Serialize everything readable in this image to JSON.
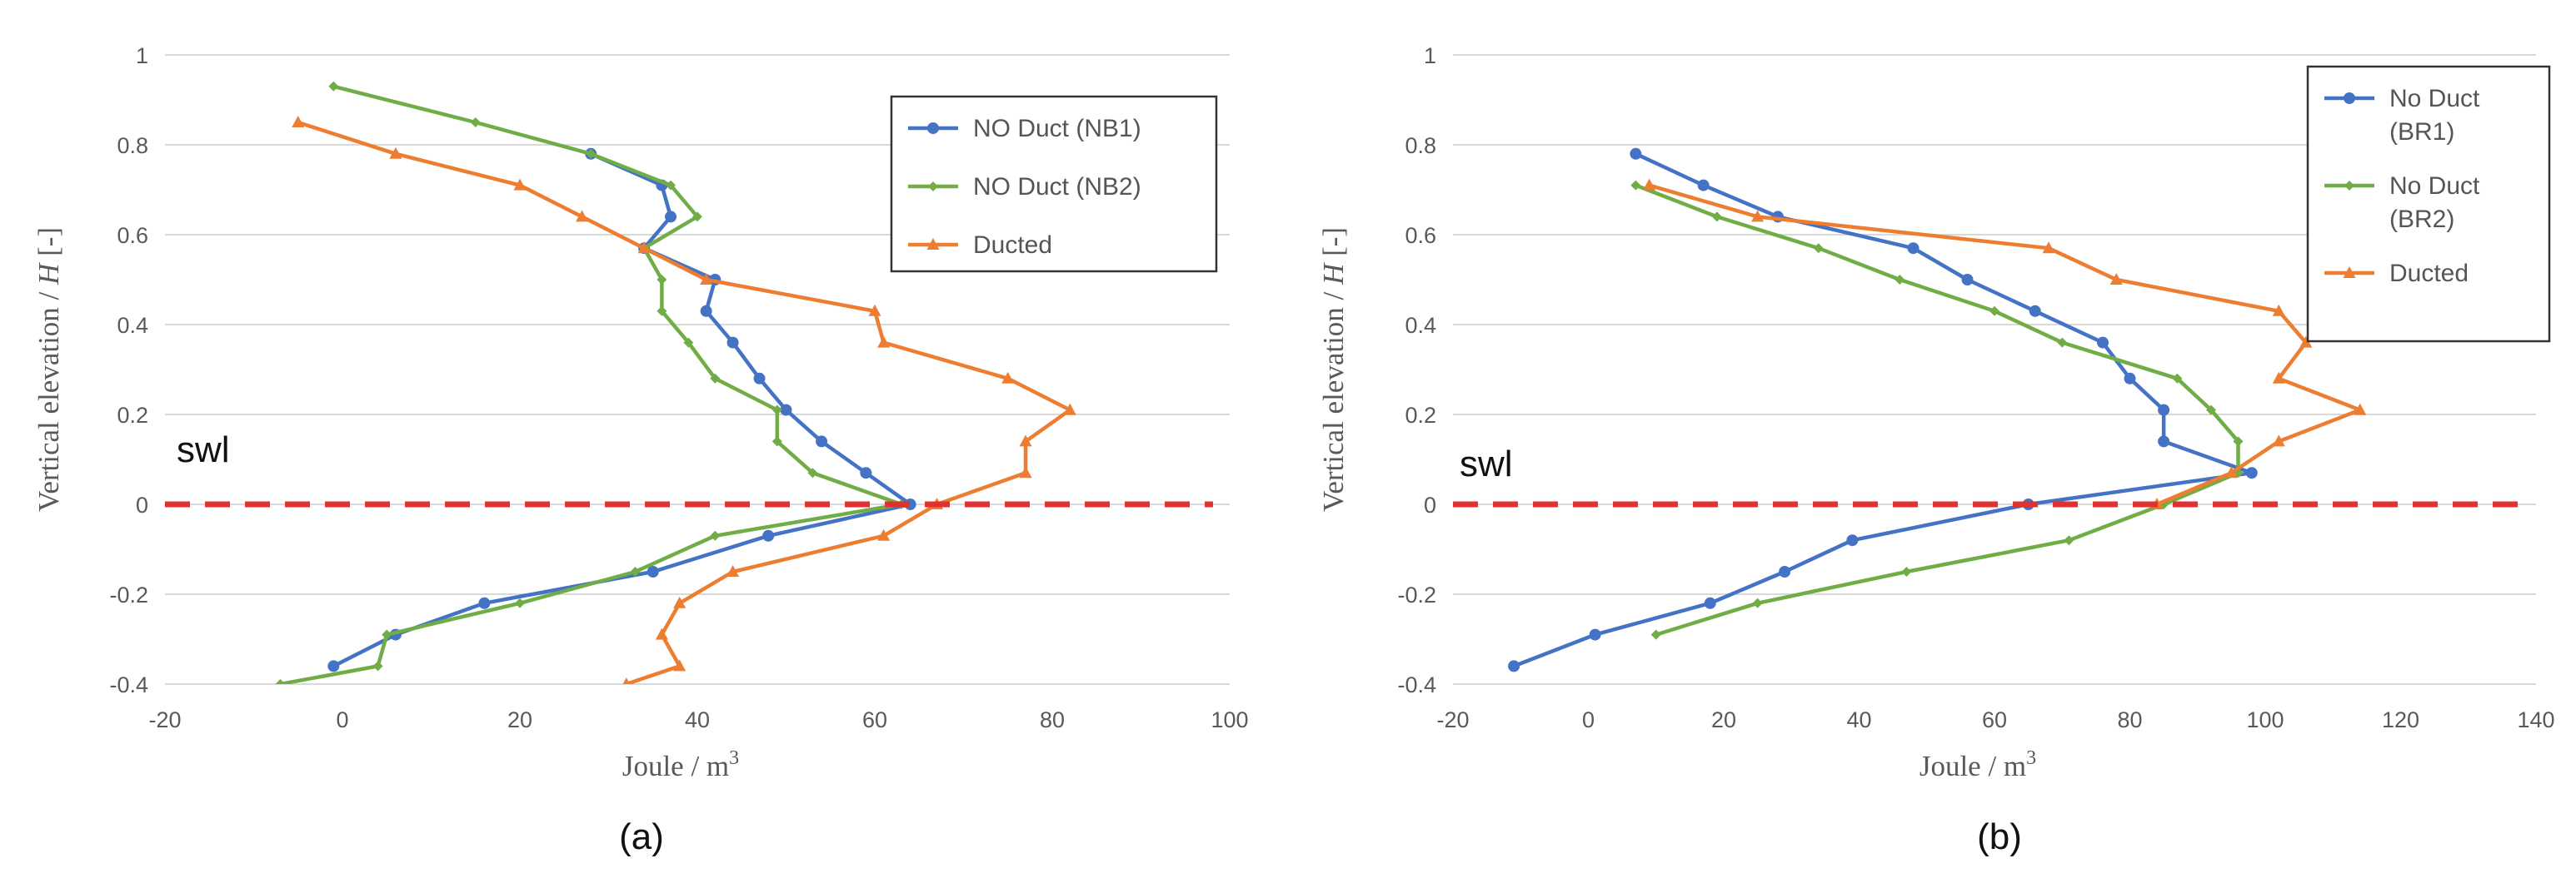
{
  "colors": {
    "blue": "#4472c4",
    "green": "#70ad47",
    "orange": "#ed7d31",
    "swl": "#e03030",
    "grid": "#d9d9d9",
    "legend_border": "#333333",
    "text": "#595959"
  },
  "chart_data": [
    {
      "type": "line",
      "caption": "(a)",
      "xlabel": "Joule / m",
      "xlabel_sup": "3",
      "ylabel_prefix": "Vertical elevation / ",
      "ylabel_var": "H",
      "ylabel_suffix": " [-]",
      "xlim": [
        -20,
        100
      ],
      "ylim": [
        -0.4,
        1
      ],
      "xticks": [
        -20,
        0,
        20,
        40,
        60,
        80,
        100
      ],
      "yticks": [
        -0.4,
        -0.2,
        0,
        0.2,
        0.4,
        0.6,
        0.8,
        1
      ],
      "xtick_labels": [
        "-20",
        "0",
        "20",
        "40",
        "60",
        "80",
        "100"
      ],
      "ytick_labels": [
        "-0.4",
        "-0.2",
        "0",
        "0.2",
        "0.4",
        "0.6",
        "0.8",
        "1"
      ],
      "grid": "horizontal",
      "legend_position": "top-right",
      "annotation": "swl",
      "swl_y": 0,
      "series": [
        {
          "name": "NO Duct (NB1)",
          "color_key": "blue",
          "marker": "circle",
          "points": [
            [
              -1,
              -0.36
            ],
            [
              6,
              -0.29
            ],
            [
              16,
              -0.22
            ],
            [
              35,
              -0.15
            ],
            [
              48,
              -0.07
            ],
            [
              64,
              0.0
            ],
            [
              59,
              0.07
            ],
            [
              54,
              0.14
            ],
            [
              50,
              0.21
            ],
            [
              47,
              0.28
            ],
            [
              44,
              0.36
            ],
            [
              41,
              0.43
            ],
            [
              42,
              0.5
            ],
            [
              34,
              0.57
            ],
            [
              37,
              0.64
            ],
            [
              36,
              0.71
            ],
            [
              28,
              0.78
            ]
          ]
        },
        {
          "name": "NO Duct (NB2)",
          "color_key": "green",
          "marker": "diamond",
          "points": [
            [
              -7,
              -0.4
            ],
            [
              4,
              -0.36
            ],
            [
              5,
              -0.29
            ],
            [
              20,
              -0.22
            ],
            [
              33,
              -0.15
            ],
            [
              42,
              -0.07
            ],
            [
              63,
              0.0
            ],
            [
              53,
              0.07
            ],
            [
              49,
              0.14
            ],
            [
              49,
              0.21
            ],
            [
              42,
              0.28
            ],
            [
              39,
              0.36
            ],
            [
              36,
              0.43
            ],
            [
              36,
              0.5
            ],
            [
              34,
              0.57
            ],
            [
              40,
              0.64
            ],
            [
              37,
              0.71
            ],
            [
              28,
              0.78
            ],
            [
              15,
              0.85
            ],
            [
              -1,
              0.93
            ]
          ]
        },
        {
          "name": "Ducted",
          "color_key": "orange",
          "marker": "triangle",
          "points": [
            [
              32,
              -0.4
            ],
            [
              38,
              -0.36
            ],
            [
              36,
              -0.29
            ],
            [
              38,
              -0.22
            ],
            [
              44,
              -0.15
            ],
            [
              61,
              -0.07
            ],
            [
              67,
              0.0
            ],
            [
              77,
              0.07
            ],
            [
              77,
              0.14
            ],
            [
              82,
              0.21
            ],
            [
              75,
              0.28
            ],
            [
              61,
              0.36
            ],
            [
              60,
              0.43
            ],
            [
              41,
              0.5
            ],
            [
              34,
              0.57
            ],
            [
              27,
              0.64
            ],
            [
              20,
              0.71
            ],
            [
              6,
              0.78
            ],
            [
              -5,
              0.85
            ]
          ]
        }
      ]
    },
    {
      "type": "line",
      "caption": "(b)",
      "xlabel": "Joule / m",
      "xlabel_sup": "3",
      "ylabel_prefix": "Vertical elevation / ",
      "ylabel_var": "H",
      "ylabel_suffix": " [-]",
      "xlim": [
        -20,
        140
      ],
      "ylim": [
        -0.4,
        1
      ],
      "xticks": [
        -20,
        0,
        20,
        40,
        60,
        80,
        100,
        120,
        140
      ],
      "yticks": [
        -0.4,
        -0.2,
        0,
        0.2,
        0.4,
        0.6,
        0.8,
        1
      ],
      "xtick_labels": [
        "-20",
        "0",
        "20",
        "40",
        "60",
        "80",
        "100",
        "120",
        "140"
      ],
      "ytick_labels": [
        "-0.4",
        "-0.2",
        "0",
        "0.2",
        "0.4",
        "0.6",
        "0.8",
        "1"
      ],
      "grid": "horizontal",
      "legend_position": "top-right",
      "annotation": "swl",
      "swl_y": 0,
      "series": [
        {
          "name": "No Duct (BR1)",
          "legend_lines": [
            "No Duct",
            "(BR1)"
          ],
          "color_key": "blue",
          "marker": "circle",
          "points": [
            [
              -11,
              -0.36
            ],
            [
              1,
              -0.29
            ],
            [
              18,
              -0.22
            ],
            [
              29,
              -0.15
            ],
            [
              39,
              -0.08
            ],
            [
              65,
              0.0
            ],
            [
              98,
              0.07
            ],
            [
              85,
              0.14
            ],
            [
              85,
              0.21
            ],
            [
              80,
              0.28
            ],
            [
              76,
              0.36
            ],
            [
              66,
              0.43
            ],
            [
              56,
              0.5
            ],
            [
              48,
              0.57
            ],
            [
              28,
              0.64
            ],
            [
              17,
              0.71
            ],
            [
              7,
              0.78
            ]
          ]
        },
        {
          "name": "No Duct (BR2)",
          "legend_lines": [
            "No Duct",
            "(BR2)"
          ],
          "color_key": "green",
          "marker": "diamond",
          "points": [
            [
              10,
              -0.29
            ],
            [
              25,
              -0.22
            ],
            [
              47,
              -0.15
            ],
            [
              71,
              -0.08
            ],
            [
              85,
              0.0
            ],
            [
              96,
              0.07
            ],
            [
              96,
              0.14
            ],
            [
              92,
              0.21
            ],
            [
              87,
              0.28
            ],
            [
              70,
              0.36
            ],
            [
              60,
              0.43
            ],
            [
              46,
              0.5
            ],
            [
              34,
              0.57
            ],
            [
              19,
              0.64
            ],
            [
              7,
              0.71
            ]
          ]
        },
        {
          "name": "Ducted",
          "legend_lines": [
            "Ducted"
          ],
          "color_key": "orange",
          "marker": "triangle",
          "points": [
            [
              84,
              0.0
            ],
            [
              95,
              0.07
            ],
            [
              102,
              0.14
            ],
            [
              114,
              0.21
            ],
            [
              102,
              0.28
            ],
            [
              106,
              0.36
            ],
            [
              102,
              0.43
            ],
            [
              78,
              0.5
            ],
            [
              68,
              0.57
            ],
            [
              25,
              0.64
            ],
            [
              9,
              0.71
            ]
          ]
        }
      ]
    }
  ]
}
